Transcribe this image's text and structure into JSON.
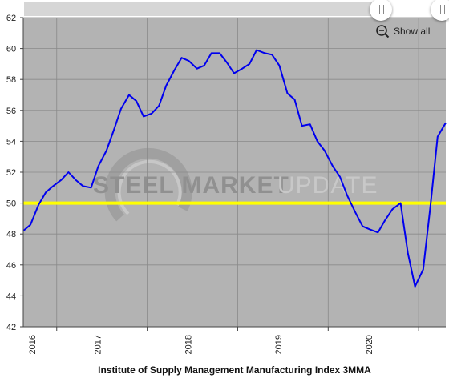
{
  "chart_data": {
    "type": "line",
    "title": "",
    "caption": "Institute of Supply Management Manufacturing Index 3MMA",
    "xlabel": "",
    "ylabel": "",
    "ylim": [
      42,
      62
    ],
    "y_ticks": [
      42,
      44,
      46,
      48,
      50,
      52,
      54,
      56,
      58,
      60,
      62
    ],
    "x_range": [
      2015.63,
      2020.3
    ],
    "x_ticks": [
      "2016",
      "2017",
      "2018",
      "2019",
      "2020"
    ],
    "grid": true,
    "reference_line": {
      "value": 50,
      "color": "#ffff00"
    },
    "series": [
      {
        "color": "#0000ee",
        "x": [
          2015.63,
          2015.71,
          2015.8,
          2015.88,
          2015.96,
          2016.05,
          2016.13,
          2016.21,
          2016.29,
          2016.38,
          2016.46,
          2016.55,
          2016.63,
          2016.71,
          2016.8,
          2016.88,
          2016.96,
          2017.05,
          2017.13,
          2017.21,
          2017.3,
          2017.38,
          2017.46,
          2017.55,
          2017.63,
          2017.71,
          2017.8,
          2017.88,
          2017.96,
          2018.05,
          2018.13,
          2018.21,
          2018.3,
          2018.38,
          2018.46,
          2018.55,
          2018.63,
          2018.71,
          2018.8,
          2018.88,
          2018.96,
          2019.05,
          2019.13,
          2019.21,
          2019.3,
          2019.38,
          2019.46,
          2019.55,
          2019.63,
          2019.71,
          2019.8,
          2019.88,
          2019.96,
          2020.05,
          2020.13,
          2020.21,
          2020.3
        ],
        "y": [
          48.2,
          48.6,
          49.9,
          50.7,
          51.1,
          51.5,
          52.0,
          51.5,
          51.1,
          51.0,
          52.4,
          53.4,
          54.7,
          56.1,
          57.0,
          56.6,
          55.6,
          55.8,
          56.3,
          57.6,
          58.6,
          59.4,
          59.2,
          58.7,
          58.9,
          59.7,
          59.7,
          59.1,
          58.4,
          58.7,
          59.0,
          59.9,
          59.7,
          59.6,
          58.9,
          57.1,
          56.7,
          55.0,
          55.1,
          54.0,
          53.4,
          52.4,
          51.7,
          50.5,
          49.4,
          48.5,
          48.3,
          48.1,
          48.9,
          49.6,
          50.0,
          46.8,
          44.6,
          45.7,
          49.8,
          54.3,
          55.2
        ]
      }
    ]
  },
  "watermark": {
    "word_bold": "STEEL MARKET",
    "word_light": "UPDATE"
  },
  "controls": {
    "show_all_label": "Show all",
    "zoom_icon": "zoom-out-icon"
  }
}
